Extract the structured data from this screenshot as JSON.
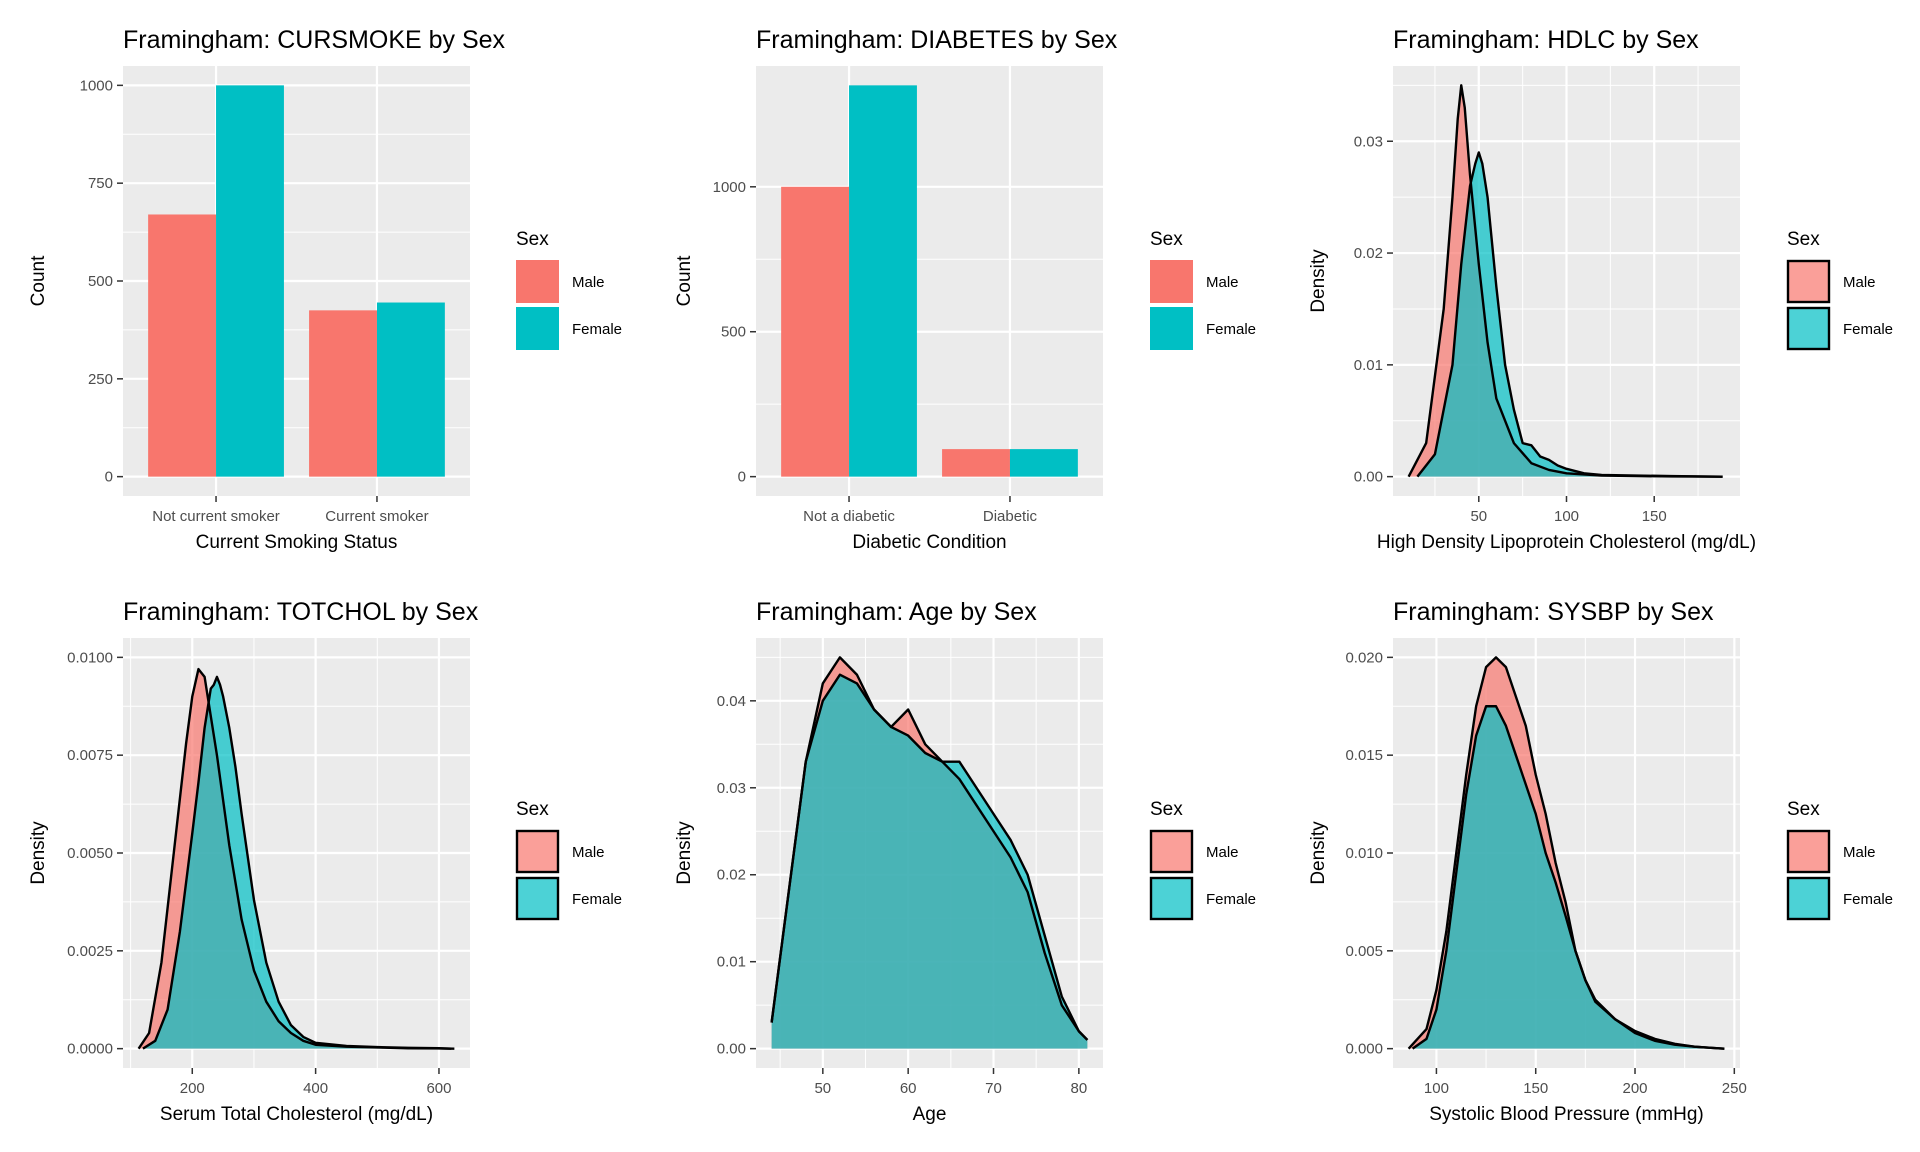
{
  "colors": {
    "male": "#F8766D",
    "female": "#00BFC4",
    "panel": "#EBEBEB",
    "grid": "#FFFFFF",
    "outline": "#000000"
  },
  "chart_data": [
    {
      "type": "bar",
      "title": "Framingham: CURSMOKE by Sex",
      "xlabel": "Current Smoking Status",
      "ylabel": "Count",
      "categories": [
        "Not current smoker",
        "Current smoker"
      ],
      "ylim": [
        0,
        1000
      ],
      "yticks": [
        "0",
        "250",
        "500",
        "750",
        "1000"
      ],
      "grid": true,
      "legend": {
        "title": "Sex",
        "placement": "right",
        "entries": [
          "Male",
          "Female"
        ]
      },
      "series": [
        {
          "name": "Male",
          "values": [
            670,
            425
          ]
        },
        {
          "name": "Female",
          "values": [
            1000,
            445
          ]
        }
      ]
    },
    {
      "type": "bar",
      "title": "Framingham: DIABETES by Sex",
      "xlabel": "Diabetic Condition",
      "ylabel": "Count",
      "categories": [
        "Not a diabetic",
        "Diabetic"
      ],
      "ylim": [
        0,
        1350
      ],
      "yticks": [
        "0",
        "500",
        "1000"
      ],
      "grid": true,
      "legend": {
        "title": "Sex",
        "placement": "right",
        "entries": [
          "Male",
          "Female"
        ]
      },
      "series": [
        {
          "name": "Male",
          "values": [
            1000,
            95
          ]
        },
        {
          "name": "Female",
          "values": [
            1350,
            95
          ]
        }
      ]
    },
    {
      "type": "area",
      "title": "Framingham: HDLC by Sex",
      "xlabel": "High Density Lipoprotein Cholesterol (mg/dL)",
      "ylabel": "Density",
      "xlim": [
        10,
        190
      ],
      "ylim": [
        0,
        0.035
      ],
      "xticks": [
        "50",
        "100",
        "150"
      ],
      "yticks": [
        "0.00",
        "0.01",
        "0.02",
        "0.03"
      ],
      "grid": true,
      "legend": {
        "title": "Sex",
        "placement": "right",
        "entries": [
          "Male",
          "Female"
        ]
      },
      "series": [
        {
          "name": "Male",
          "x": [
            10,
            20,
            30,
            35,
            38,
            40,
            42,
            45,
            50,
            55,
            60,
            70,
            80,
            90,
            100,
            110,
            120,
            140,
            160,
            189
          ],
          "y": [
            0,
            0.003,
            0.015,
            0.025,
            0.032,
            0.035,
            0.033,
            0.027,
            0.019,
            0.012,
            0.007,
            0.003,
            0.0012,
            0.0006,
            0.0003,
            0.0002,
            0.0001,
            5e-05,
            2e-05,
            0
          ]
        },
        {
          "name": "Female",
          "x": [
            15,
            25,
            35,
            40,
            45,
            48,
            50,
            52,
            55,
            60,
            65,
            70,
            75,
            80,
            85,
            90,
            95,
            100,
            110,
            120,
            140,
            160,
            189
          ],
          "y": [
            0,
            0.002,
            0.01,
            0.019,
            0.026,
            0.028,
            0.029,
            0.028,
            0.025,
            0.017,
            0.01,
            0.006,
            0.003,
            0.0028,
            0.0018,
            0.0015,
            0.001,
            0.0007,
            0.0003,
            0.00015,
            0.0001,
            5e-05,
            0
          ]
        }
      ]
    },
    {
      "type": "area",
      "title": "Framingham: TOTCHOL by Sex",
      "xlabel": "Serum Total Cholesterol (mg/dL)",
      "ylabel": "Density",
      "xlim": [
        113,
        625
      ],
      "ylim": [
        0,
        0.01
      ],
      "xticks": [
        "200",
        "400",
        "600"
      ],
      "yticks": [
        "0.0000",
        "0.0025",
        "0.0050",
        "0.0075",
        "0.0100"
      ],
      "grid": true,
      "legend": {
        "title": "Sex",
        "placement": "right",
        "entries": [
          "Male",
          "Female"
        ]
      },
      "series": [
        {
          "name": "Male",
          "x": [
            113,
            130,
            150,
            170,
            190,
            200,
            210,
            220,
            230,
            240,
            260,
            280,
            300,
            320,
            340,
            360,
            380,
            400,
            450,
            500,
            550,
            600,
            625
          ],
          "y": [
            0,
            0.0004,
            0.0022,
            0.005,
            0.0078,
            0.009,
            0.0097,
            0.0095,
            0.0085,
            0.0075,
            0.0052,
            0.0033,
            0.002,
            0.0012,
            0.0007,
            0.0004,
            0.0002,
            0.0001,
            5e-05,
            3e-05,
            1e-05,
            5e-06,
            0
          ]
        },
        {
          "name": "Female",
          "x": [
            120,
            140,
            160,
            180,
            200,
            210,
            220,
            230,
            235,
            240,
            245,
            250,
            260,
            270,
            280,
            300,
            320,
            340,
            360,
            380,
            400,
            450,
            500,
            550,
            600,
            620
          ],
          "y": [
            0,
            0.0002,
            0.001,
            0.003,
            0.0055,
            0.0068,
            0.0082,
            0.0092,
            0.0093,
            0.0095,
            0.0093,
            0.009,
            0.0082,
            0.0072,
            0.006,
            0.0038,
            0.0022,
            0.0012,
            0.0006,
            0.0003,
            0.00015,
            7e-05,
            4e-05,
            2e-05,
            1e-05,
            0
          ]
        }
      ]
    },
    {
      "type": "area",
      "title": "Framingham: Age by Sex",
      "xlabel": "Age",
      "ylabel": "Density",
      "xlim": [
        44,
        81
      ],
      "ylim": [
        0,
        0.045
      ],
      "xticks": [
        "50",
        "60",
        "70",
        "80"
      ],
      "yticks": [
        "0.00",
        "0.01",
        "0.02",
        "0.03",
        "0.04"
      ],
      "grid": true,
      "legend": {
        "title": "Sex",
        "placement": "right",
        "entries": [
          "Male",
          "Female"
        ]
      },
      "series": [
        {
          "name": "Male",
          "x": [
            44,
            46,
            48,
            50,
            52,
            54,
            56,
            58,
            60,
            62,
            64,
            66,
            68,
            70,
            72,
            74,
            76,
            78,
            80,
            81
          ],
          "y": [
            0.003,
            0.018,
            0.033,
            0.042,
            0.045,
            0.043,
            0.039,
            0.037,
            0.039,
            0.035,
            0.033,
            0.031,
            0.028,
            0.025,
            0.022,
            0.018,
            0.011,
            0.005,
            0.002,
            0.001
          ]
        },
        {
          "name": "Female",
          "x": [
            44,
            46,
            48,
            50,
            52,
            54,
            56,
            58,
            60,
            62,
            64,
            66,
            68,
            70,
            72,
            74,
            76,
            78,
            80,
            81
          ],
          "y": [
            0.003,
            0.018,
            0.033,
            0.04,
            0.043,
            0.042,
            0.039,
            0.037,
            0.036,
            0.034,
            0.033,
            0.033,
            0.03,
            0.027,
            0.024,
            0.02,
            0.013,
            0.006,
            0.002,
            0.001
          ]
        }
      ]
    },
    {
      "type": "area",
      "title": "Framingham: SYSBP by Sex",
      "xlabel": "Systolic Blood Pressure (mmHg)",
      "ylabel": "Density",
      "xlim": [
        86,
        245
      ],
      "ylim": [
        0,
        0.02
      ],
      "xticks": [
        "100",
        "150",
        "200",
        "250"
      ],
      "yticks": [
        "0.000",
        "0.005",
        "0.010",
        "0.015",
        "0.020"
      ],
      "grid": true,
      "legend": {
        "title": "Sex",
        "placement": "right",
        "entries": [
          "Male",
          "Female"
        ]
      },
      "series": [
        {
          "name": "Male",
          "x": [
            86,
            95,
            100,
            105,
            110,
            115,
            120,
            125,
            130,
            135,
            140,
            145,
            150,
            155,
            160,
            165,
            170,
            175,
            180,
            190,
            200,
            210,
            220,
            230,
            240,
            245
          ],
          "y": [
            0,
            0.001,
            0.003,
            0.006,
            0.01,
            0.014,
            0.0175,
            0.0195,
            0.02,
            0.0195,
            0.018,
            0.0165,
            0.014,
            0.012,
            0.0095,
            0.0075,
            0.005,
            0.0035,
            0.0025,
            0.0015,
            0.0008,
            0.0004,
            0.0002,
            0.0001,
            3e-05,
            0
          ]
        },
        {
          "name": "Female",
          "x": [
            88,
            95,
            100,
            105,
            110,
            115,
            120,
            125,
            130,
            135,
            140,
            145,
            150,
            155,
            160,
            165,
            170,
            175,
            180,
            190,
            200,
            210,
            220,
            230,
            240,
            245
          ],
          "y": [
            0,
            0.0005,
            0.002,
            0.005,
            0.009,
            0.013,
            0.016,
            0.0175,
            0.0175,
            0.0165,
            0.015,
            0.0135,
            0.012,
            0.01,
            0.0085,
            0.0068,
            0.005,
            0.0035,
            0.0024,
            0.0015,
            0.0009,
            0.0005,
            0.00025,
            0.0001,
            3e-05,
            0
          ]
        }
      ]
    }
  ]
}
